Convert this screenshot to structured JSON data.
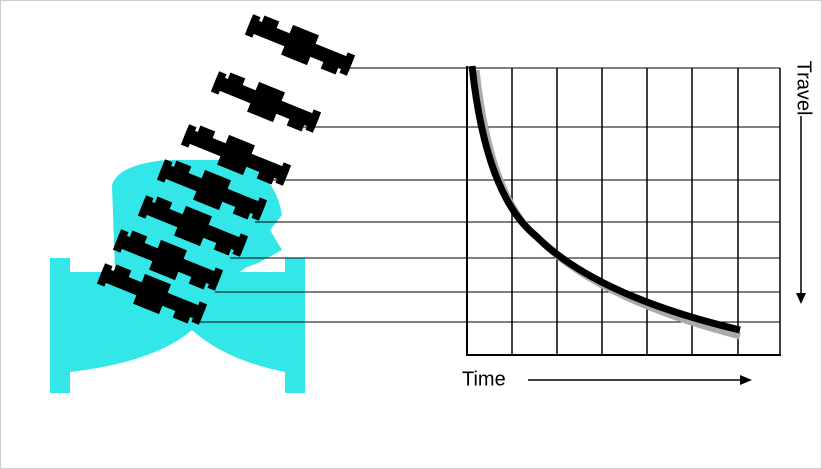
{
  "labels": {
    "travel": "Travel",
    "time": "Time"
  }
}
